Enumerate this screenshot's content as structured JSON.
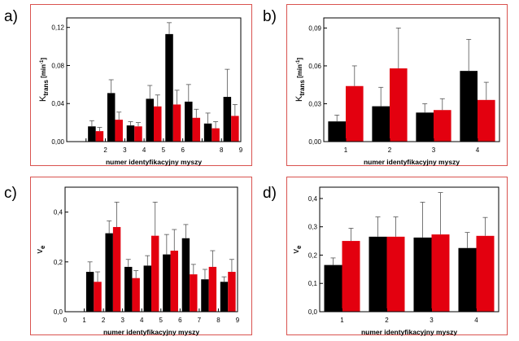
{
  "colors": {
    "series_a": "#000000",
    "series_b": "#e3000f",
    "frame": "#d9534f"
  },
  "chart_data": [
    {
      "panel": "a)",
      "type": "bar",
      "xlabel": "numer identyfikacyjny myszy",
      "ylabel_main": "K",
      "ylabel_sub": "trans",
      "ylabel_unit": "[min",
      "ylabel_exp": "-1",
      "ylabel_close": "]",
      "xlim": [
        0,
        9
      ],
      "ylim": [
        0,
        0.13
      ],
      "xticks": [
        "0",
        "1",
        "2",
        "3",
        "4",
        "5",
        "6",
        "7",
        "8",
        "9"
      ],
      "xticks_labeled": [
        2,
        3,
        4,
        5,
        6,
        8,
        9
      ],
      "yticks": [
        0,
        0.04,
        0.08,
        0.12
      ],
      "ytick_labels": [
        "0,00",
        "0,04",
        "0,08",
        "0,12"
      ],
      "series": [
        {
          "color": "black",
          "x": [
            1.5,
            2.5,
            3.5,
            4.5,
            5.5,
            6.5,
            7.5,
            8.5
          ],
          "values": [
            0.016,
            0.051,
            0.017,
            0.045,
            0.113,
            0.042,
            0.019,
            0.047
          ],
          "errors": [
            0.006,
            0.014,
            0.004,
            0.014,
            0.012,
            0.018,
            0.011,
            0.029
          ]
        },
        {
          "color": "red",
          "x": [
            1.5,
            2.5,
            3.5,
            4.5,
            5.5,
            6.5,
            7.5,
            8.5
          ],
          "values": [
            0.011,
            0.023,
            0.016,
            0.037,
            0.039,
            0.025,
            0.014,
            0.027
          ],
          "errors": [
            0.004,
            0.008,
            0.004,
            0.012,
            0.015,
            0.009,
            0.007,
            0.012
          ]
        }
      ]
    },
    {
      "panel": "b)",
      "type": "bar",
      "xlabel": "numer identyfikacyjny myszy",
      "ylabel_main": "K",
      "ylabel_sub": "trans",
      "ylabel_unit": "[min",
      "ylabel_exp": "-1",
      "ylabel_close": "]",
      "categories": [
        "1",
        "2",
        "3",
        "4"
      ],
      "ylim": [
        0,
        0.098
      ],
      "yticks": [
        0,
        0.03,
        0.06,
        0.09
      ],
      "ytick_labels": [
        "0,00",
        "0,03",
        "0,06",
        "0,09"
      ],
      "series": [
        {
          "color": "black",
          "values": [
            0.016,
            0.028,
            0.023,
            0.056
          ],
          "errors": [
            0.005,
            0.015,
            0.007,
            0.025
          ]
        },
        {
          "color": "red",
          "values": [
            0.044,
            0.058,
            0.025,
            0.033
          ],
          "errors": [
            0.016,
            0.032,
            0.009,
            0.014
          ]
        }
      ]
    },
    {
      "panel": "c)",
      "type": "bar",
      "xlabel": "numer identyfikacyjny myszy",
      "ylabel_main": "v",
      "ylabel_sub": "e",
      "xlim": [
        0,
        9
      ],
      "ylim": [
        0,
        0.5
      ],
      "xticks": [
        "0",
        "1",
        "2",
        "3",
        "4",
        "5",
        "6",
        "7",
        "8",
        "9"
      ],
      "yticks": [
        0,
        0.2,
        0.4
      ],
      "ytick_labels": [
        "0,0",
        "0,2",
        "0,4"
      ],
      "series": [
        {
          "color": "black",
          "x": [
            1.5,
            2.5,
            3.5,
            4.5,
            5.5,
            6.5,
            7.5,
            8.5
          ],
          "values": [
            0.16,
            0.315,
            0.18,
            0.185,
            0.23,
            0.295,
            0.13,
            0.12
          ],
          "errors": [
            0.04,
            0.05,
            0.03,
            0.04,
            0.08,
            0.055,
            0.04,
            0.02
          ]
        },
        {
          "color": "red",
          "x": [
            1.5,
            2.5,
            3.5,
            4.5,
            5.5,
            6.5,
            7.5,
            8.5
          ],
          "values": [
            0.12,
            0.34,
            0.135,
            0.305,
            0.245,
            0.15,
            0.18,
            0.16
          ],
          "errors": [
            0.04,
            0.1,
            0.03,
            0.135,
            0.085,
            0.04,
            0.065,
            0.05
          ]
        }
      ]
    },
    {
      "panel": "d)",
      "type": "bar",
      "xlabel": "numer identyfikacyjny myszy",
      "ylabel_main": "v",
      "ylabel_sub": "e",
      "categories": [
        "1",
        "2",
        "3",
        "4"
      ],
      "ylim": [
        0,
        0.44
      ],
      "yticks": [
        0,
        0.1,
        0.2,
        0.3,
        0.4
      ],
      "ytick_labels": [
        "0,0",
        "0,1",
        "0,2",
        "0,3",
        "0,4"
      ],
      "series": [
        {
          "color": "black",
          "values": [
            0.165,
            0.265,
            0.262,
            0.225
          ],
          "errors": [
            0.025,
            0.07,
            0.125,
            0.055
          ]
        },
        {
          "color": "red",
          "values": [
            0.25,
            0.265,
            0.273,
            0.268
          ],
          "errors": [
            0.045,
            0.07,
            0.148,
            0.065
          ]
        }
      ]
    }
  ]
}
